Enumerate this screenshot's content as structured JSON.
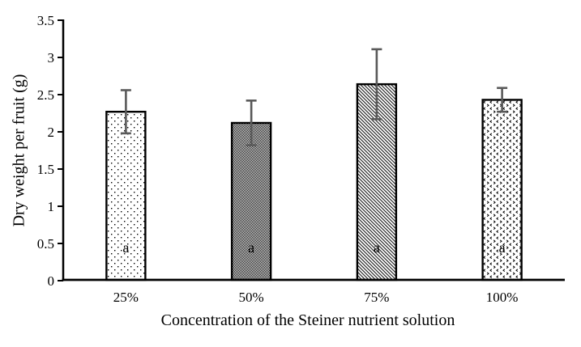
{
  "figure": {
    "background": "#ffffff"
  },
  "chart_data": {
    "type": "bar",
    "title": "",
    "categories": [
      "25%",
      "50%",
      "75%",
      "100%"
    ],
    "values": [
      2.27,
      2.12,
      2.64,
      2.43
    ],
    "error_bars": [
      0.29,
      0.3,
      0.47,
      0.16
    ],
    "bar_labels": [
      "a",
      "a",
      "a",
      "a"
    ],
    "bar_patterns": [
      "dots",
      "checker",
      "diagonal",
      "divot"
    ],
    "xlabel": "Concentration of the Steiner nutrient solution",
    "ylabel": "Dry weight per fruit (g)",
    "ylim": [
      0,
      3.5
    ],
    "y_ticks": [
      0,
      0.5,
      1,
      1.5,
      2,
      2.5,
      3,
      3.5
    ],
    "y_tick_labels": [
      "0",
      "0.5",
      "1",
      "1.5",
      "2",
      "2.5",
      "3",
      "3.5"
    ],
    "grid": false,
    "legend": false,
    "colors": {
      "bar_fill_base": "#ffffff",
      "bar_pattern": "#000000",
      "bar_border": "#000000",
      "error_bar": "#595959",
      "axis": "#000000",
      "significance_label": "#333333"
    }
  }
}
